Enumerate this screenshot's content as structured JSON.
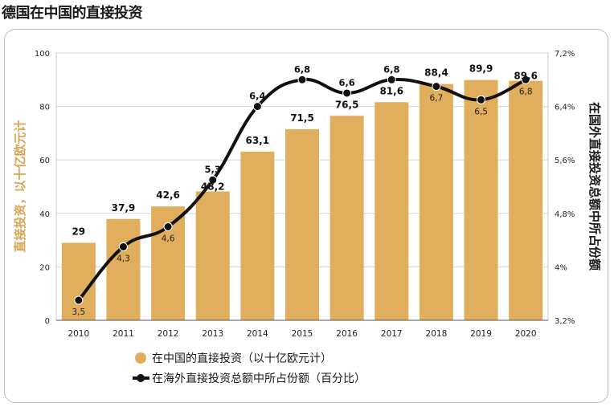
{
  "title": "德国在中国的直接投资",
  "colors": {
    "bar": "#e0ae5c",
    "line": "#111111",
    "grid": "#d6d6d6",
    "left_axis_label": "#d9a451"
  },
  "chart_data": {
    "type": "bar",
    "categories": [
      "2010",
      "2011",
      "2012",
      "2013",
      "2014",
      "2015",
      "2016",
      "2017",
      "2018",
      "2019",
      "2020"
    ],
    "series": [
      {
        "name": "在中国的直接投资（以十亿欧元计）",
        "type": "bar",
        "axis": "left",
        "values": [
          29,
          37.9,
          42.6,
          48.2,
          63.1,
          71.5,
          76.5,
          81.6,
          88.4,
          89.9,
          89.6
        ],
        "labels": [
          "29",
          "37,9",
          "42,6",
          "48,2",
          "63,1",
          "71,5",
          "76,5",
          "81,6",
          "88,4",
          "89,9",
          "89,6"
        ]
      },
      {
        "name": "在海外直接投资总额中所占份额（百分比）",
        "type": "line",
        "axis": "right",
        "values": [
          3.5,
          4.3,
          4.6,
          5.3,
          6.4,
          6.8,
          6.6,
          6.8,
          6.7,
          6.5,
          6.8
        ],
        "labels": [
          "3,5",
          "4,3",
          "4,6",
          "5,3",
          "6,4",
          "6,8",
          "6,6",
          "6,8",
          "6,7",
          "6,5",
          "6,8"
        ]
      }
    ],
    "ylabel_left": "直接投资，以十亿欧元计",
    "ylabel_right": "在国外直接投资总额中所占份额",
    "ylim_left": [
      0,
      100
    ],
    "yticks_left": [
      "0",
      "20",
      "40",
      "60",
      "80",
      "100"
    ],
    "ylim_right": [
      3.2,
      7.2
    ],
    "yticks_right": [
      "3,2%",
      "4%",
      "4,8%",
      "5,6%",
      "6,4%",
      "7,2%"
    ],
    "grid": true,
    "legend_position": "bottom"
  }
}
